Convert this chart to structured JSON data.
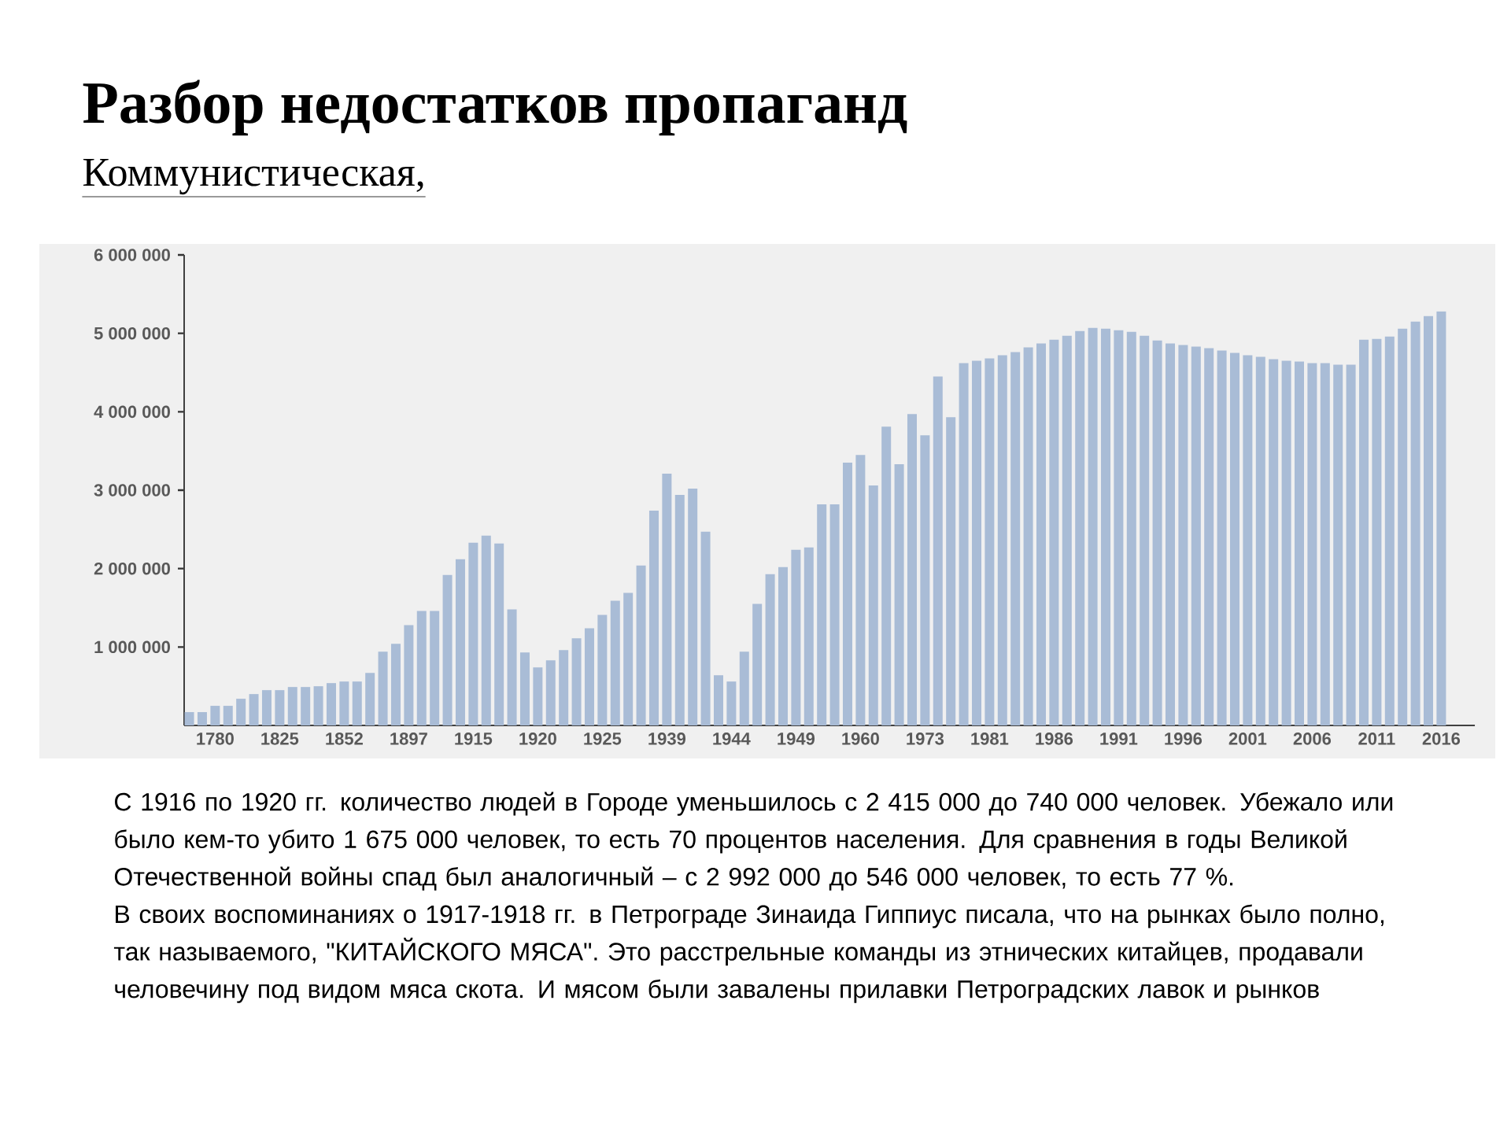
{
  "chart_data": {
    "type": "bar",
    "title": "Разбор недостатков пропаганд",
    "subtitle": "Коммунистическая,",
    "categories": [
      null,
      null,
      "1780",
      null,
      null,
      null,
      null,
      "1825",
      null,
      null,
      null,
      null,
      "1852",
      null,
      null,
      null,
      null,
      "1897",
      null,
      null,
      null,
      null,
      "1915",
      null,
      null,
      null,
      null,
      "1920",
      null,
      null,
      null,
      null,
      "1925",
      null,
      null,
      null,
      null,
      "1939",
      null,
      null,
      null,
      null,
      "1944",
      null,
      null,
      null,
      null,
      "1949",
      null,
      null,
      null,
      null,
      "1960",
      null,
      null,
      null,
      null,
      "1973",
      null,
      null,
      null,
      null,
      "1981",
      null,
      null,
      null,
      null,
      "1986",
      null,
      null,
      null,
      null,
      "1991",
      null,
      null,
      null,
      null,
      "1996",
      null,
      null,
      null,
      null,
      "2001",
      null,
      null,
      null,
      null,
      "2006",
      null,
      null,
      null,
      null,
      "2011",
      null,
      null,
      null,
      null,
      "2016"
    ],
    "values": [
      170000,
      170000,
      250000,
      250000,
      340000,
      400000,
      450000,
      450000,
      490000,
      490000,
      500000,
      540000,
      560000,
      560000,
      670000,
      940000,
      1040000,
      1280000,
      1460000,
      1460000,
      1920000,
      2120000,
      2330000,
      2420000,
      2320000,
      1480000,
      930000,
      740000,
      830000,
      960000,
      1110000,
      1240000,
      1410000,
      1590000,
      1690000,
      2040000,
      2740000,
      3210000,
      2940000,
      3020000,
      2470000,
      640000,
      560000,
      940000,
      1550000,
      1930000,
      2020000,
      2240000,
      2270000,
      2820000,
      2820000,
      3350000,
      3450000,
      3060000,
      3810000,
      3330000,
      3970000,
      3700000,
      4450000,
      3930000,
      4620000,
      4650000,
      4680000,
      4720000,
      4760000,
      4820000,
      4870000,
      4920000,
      4970000,
      5030000,
      5070000,
      5060000,
      5040000,
      5020000,
      4970000,
      4910000,
      4870000,
      4850000,
      4830000,
      4810000,
      4780000,
      4750000,
      4720000,
      4700000,
      4670000,
      4650000,
      4640000,
      4620000,
      4620000,
      4600000,
      4600000,
      4920000,
      4930000,
      4960000,
      5060000,
      5150000,
      5220000,
      5280000
    ],
    "color": "#a9bcd6",
    "ylim": [
      0,
      6000000
    ],
    "yticks": [
      {
        "value": 1000000,
        "label": "1 000 000"
      },
      {
        "value": 2000000,
        "label": "2 000 000"
      },
      {
        "value": 3000000,
        "label": "3 000 000"
      },
      {
        "value": 4000000,
        "label": "4 000 000"
      },
      {
        "value": 5000000,
        "label": "5 000 000"
      },
      {
        "value": 6000000,
        "label": "6 000 000"
      }
    ],
    "annotations": [
      "С 1916 по 1920 гг. количество людей в Городе уменьшилось с 2 415 000 до 740 000 человек. Убежало или было кем-то убито 1 675 000 человек, то есть 70 процентов населения. Для сравнения в годы Великой Отечественной войны спад был аналогичный – с 2 992 000 до 546 000 человек, то есть 77 %.",
      "В своих воспоминаниях о 1917-1918 гг. в Петрограде Зинаида Гиппиус писала, что на рынках было полно, так называемого, \"КИТАЙСКОГО МЯСА\". Это расстрельные команды из этнических китайцев, продавали человечину под видом мяса скота. И мясом были завалены прилавки Петроградских лавок и рынков"
    ]
  }
}
